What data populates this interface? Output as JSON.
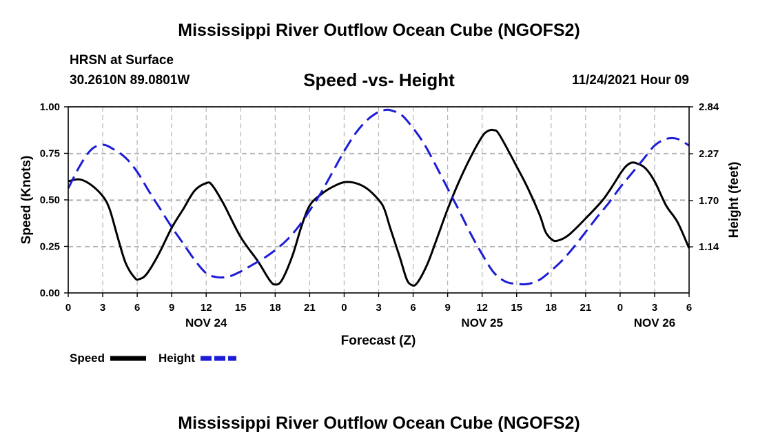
{
  "header": {
    "title": "Mississippi River Outflow Ocean Cube (NGOFS2)",
    "station": "HRSN at Surface",
    "coords": "30.2610N  89.0801W",
    "subtitle": "Speed -vs- Height",
    "datetime": "11/24/2021 Hour 09"
  },
  "footer": {
    "title": "Mississippi River Outflow Ocean Cube (NGOFS2)"
  },
  "chart_data": {
    "type": "line",
    "title": "Speed -vs- Height",
    "xlabel": "Forecast (Z)",
    "ylabel": "Speed (Knots)",
    "y2label": "Height (feet)",
    "xlim": [
      0,
      54
    ],
    "ylim": [
      0,
      1
    ],
    "y2lim": [
      0.58,
      2.84
    ],
    "x_ticks": [
      0,
      3,
      6,
      9,
      12,
      15,
      18,
      21,
      24,
      27,
      30,
      33,
      36,
      39,
      42,
      45,
      48,
      51,
      54
    ],
    "x_tick_labels": [
      "0",
      "3",
      "6",
      "9",
      "12",
      "15",
      "18",
      "21",
      "0",
      "3",
      "6",
      "9",
      "12",
      "15",
      "18",
      "21",
      "0",
      "3",
      "6"
    ],
    "date_labels": [
      {
        "x": 12,
        "label": "NOV 24"
      },
      {
        "x": 36,
        "label": "NOV 25"
      },
      {
        "x": 51,
        "label": "NOV 26"
      }
    ],
    "y_ticks": [
      0,
      0.25,
      0.5,
      0.75,
      1.0
    ],
    "y_tick_labels": [
      "0.00",
      "0.25",
      "0.50",
      "0.75",
      "1.00"
    ],
    "y2_ticks": [
      1.14,
      1.7,
      2.27,
      2.84
    ],
    "y2_tick_labels": [
      "1.14",
      "1.70",
      "2.27",
      "2.84"
    ],
    "grid": true,
    "legend_position": "bottom-left",
    "series": [
      {
        "name": "Speed",
        "axis": "left",
        "color": "#000000",
        "dash": "solid",
        "points": [
          [
            0,
            0.6
          ],
          [
            1,
            0.61
          ],
          [
            2,
            0.58
          ],
          [
            3,
            0.52
          ],
          [
            3.6,
            0.45
          ],
          [
            4.3,
            0.3
          ],
          [
            5,
            0.16
          ],
          [
            5.8,
            0.08
          ],
          [
            6.2,
            0.075
          ],
          [
            6.8,
            0.1
          ],
          [
            7.8,
            0.2
          ],
          [
            9,
            0.35
          ],
          [
            10,
            0.45
          ],
          [
            11,
            0.55
          ],
          [
            12,
            0.59
          ],
          [
            12.5,
            0.58
          ],
          [
            13.5,
            0.48
          ],
          [
            15,
            0.3
          ],
          [
            16.5,
            0.17
          ],
          [
            17.5,
            0.07
          ],
          [
            18,
            0.045
          ],
          [
            18.6,
            0.07
          ],
          [
            19.5,
            0.2
          ],
          [
            20.3,
            0.36
          ],
          [
            21,
            0.47
          ],
          [
            22,
            0.53
          ],
          [
            23,
            0.57
          ],
          [
            24,
            0.595
          ],
          [
            25,
            0.59
          ],
          [
            26,
            0.56
          ],
          [
            27,
            0.5
          ],
          [
            27.5,
            0.45
          ],
          [
            28,
            0.35
          ],
          [
            28.8,
            0.2
          ],
          [
            29.4,
            0.08
          ],
          [
            29.8,
            0.045
          ],
          [
            30.3,
            0.05
          ],
          [
            31.2,
            0.15
          ],
          [
            32,
            0.28
          ],
          [
            33,
            0.45
          ],
          [
            34,
            0.6
          ],
          [
            35,
            0.73
          ],
          [
            36,
            0.84
          ],
          [
            36.5,
            0.87
          ],
          [
            37,
            0.875
          ],
          [
            37.5,
            0.85
          ],
          [
            39,
            0.68
          ],
          [
            40,
            0.56
          ],
          [
            41,
            0.42
          ],
          [
            41.5,
            0.33
          ],
          [
            42,
            0.29
          ],
          [
            42.5,
            0.28
          ],
          [
            43.5,
            0.31
          ],
          [
            45,
            0.4
          ],
          [
            46.5,
            0.5
          ],
          [
            47.5,
            0.59
          ],
          [
            48,
            0.64
          ],
          [
            48.5,
            0.68
          ],
          [
            49,
            0.7
          ],
          [
            49.5,
            0.695
          ],
          [
            50.2,
            0.67
          ],
          [
            51,
            0.6
          ],
          [
            52,
            0.47
          ],
          [
            53,
            0.38
          ],
          [
            54,
            0.24
          ]
        ]
      },
      {
        "name": "Height",
        "axis": "right",
        "color": "#1c1cd6",
        "dash": "dashed",
        "points": [
          [
            0,
            1.85
          ],
          [
            1,
            2.12
          ],
          [
            2,
            2.32
          ],
          [
            3,
            2.38
          ],
          [
            4,
            2.32
          ],
          [
            5,
            2.22
          ],
          [
            6,
            2.05
          ],
          [
            7,
            1.82
          ],
          [
            8,
            1.6
          ],
          [
            9,
            1.38
          ],
          [
            10,
            1.18
          ],
          [
            11,
            0.98
          ],
          [
            12,
            0.82
          ],
          [
            13,
            0.77
          ],
          [
            14,
            0.78
          ],
          [
            15,
            0.84
          ],
          [
            16,
            0.92
          ],
          [
            17,
            1.0
          ],
          [
            18,
            1.1
          ],
          [
            19,
            1.22
          ],
          [
            20,
            1.38
          ],
          [
            21,
            1.58
          ],
          [
            22,
            1.8
          ],
          [
            23,
            2.05
          ],
          [
            24,
            2.3
          ],
          [
            25,
            2.52
          ],
          [
            26,
            2.68
          ],
          [
            27,
            2.78
          ],
          [
            27.5,
            2.8
          ],
          [
            28,
            2.8
          ],
          [
            29,
            2.74
          ],
          [
            30,
            2.58
          ],
          [
            31,
            2.38
          ],
          [
            32,
            2.12
          ],
          [
            33,
            1.85
          ],
          [
            34,
            1.58
          ],
          [
            35,
            1.3
          ],
          [
            36,
            1.05
          ],
          [
            37,
            0.83
          ],
          [
            38,
            0.72
          ],
          [
            39,
            0.69
          ],
          [
            40,
            0.69
          ],
          [
            41,
            0.74
          ],
          [
            42,
            0.85
          ],
          [
            43,
            0.98
          ],
          [
            44,
            1.14
          ],
          [
            45,
            1.32
          ],
          [
            46,
            1.5
          ],
          [
            47,
            1.67
          ],
          [
            48,
            1.86
          ],
          [
            49,
            2.03
          ],
          [
            50,
            2.2
          ],
          [
            51,
            2.37
          ],
          [
            52,
            2.45
          ],
          [
            53,
            2.45
          ],
          [
            54,
            2.37
          ]
        ]
      }
    ]
  }
}
